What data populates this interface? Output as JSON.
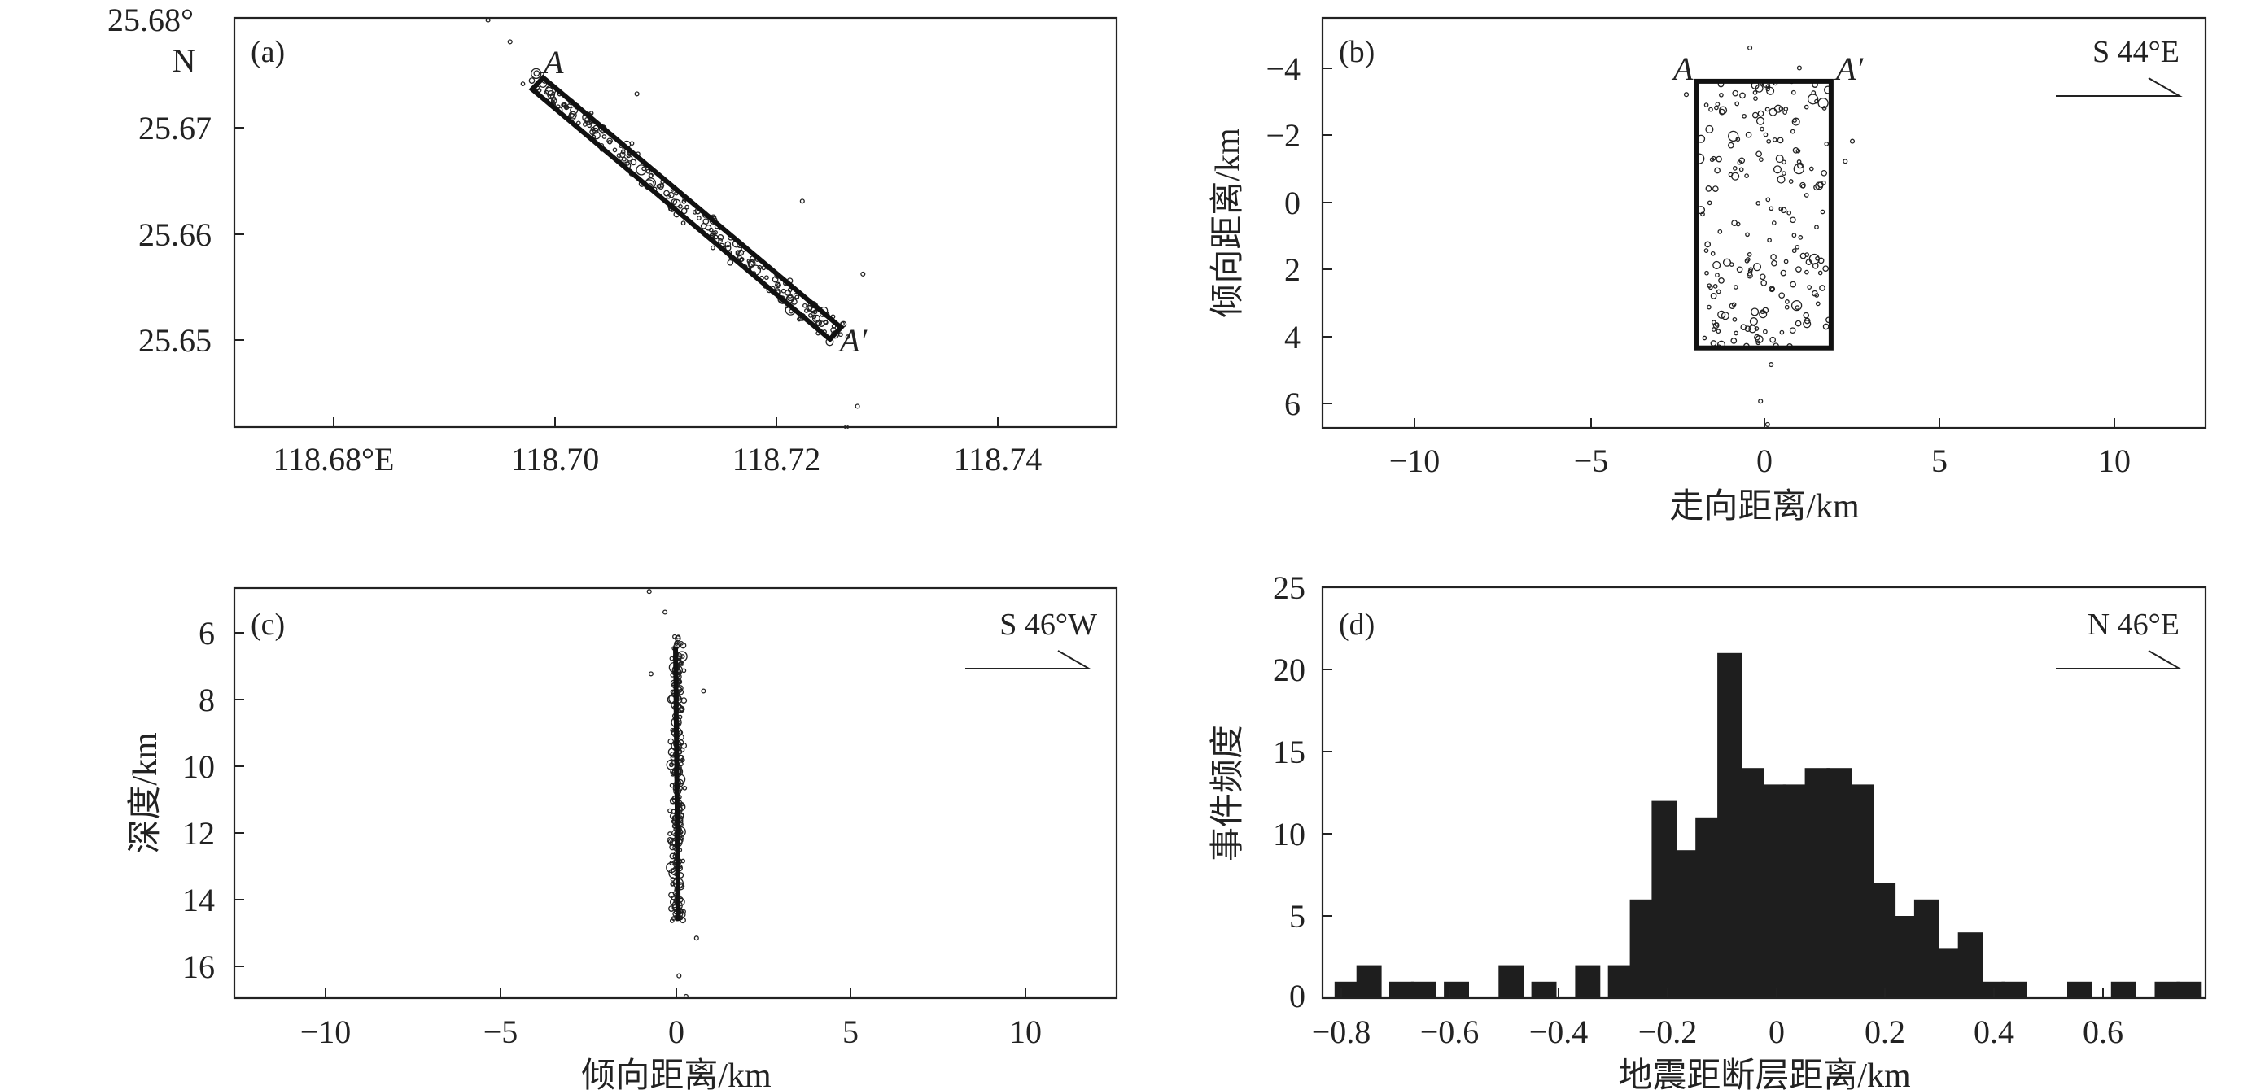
{
  "chart_data": [
    {
      "type": "scatter",
      "panel_label": "(a)",
      "x_ticks": [
        "118.68°E",
        "118.70",
        "118.72",
        "118.74"
      ],
      "x_tick_values": [
        118.68,
        118.7,
        118.72,
        118.74
      ],
      "y_ticks": [
        "25.68°",
        "25.67",
        "25.66",
        "25.65"
      ],
      "y_tick_values": [
        25.68,
        25.67,
        25.66,
        25.65
      ],
      "y_unit": "N",
      "xlim": [
        118.671,
        118.751
      ],
      "ylim": [
        25.6415,
        25.6808
      ],
      "grid": false,
      "profile_box": {
        "start_label": "A",
        "end_label": "A′",
        "start": [
          118.6985,
          25.6745
        ],
        "end": [
          118.7255,
          25.6505
        ],
        "half_width_deg": 0.00075
      },
      "note": "approximate earthquake epicenters"
    },
    {
      "type": "scatter",
      "panel_label": "(b)",
      "xlabel": "走向距离/km",
      "ylabel": "倾向距离/km",
      "x_ticks": [
        "−10",
        "−5",
        "0",
        "5",
        "10"
      ],
      "x_tick_values": [
        -10,
        -5,
        0,
        5,
        10
      ],
      "y_ticks": [
        "−4",
        "−2",
        "0",
        "2",
        "4",
        "6"
      ],
      "y_tick_values": [
        -4,
        -2,
        0,
        2,
        4,
        6
      ],
      "xlim": [
        -12.5,
        12.5
      ],
      "ylim": [
        -5.5,
        6.8
      ],
      "y_inverted": true,
      "grid": false,
      "direction_label": "S 44°E",
      "profile_box": {
        "start_label": "A",
        "end_label": "A′",
        "x": [
          -1.9,
          1.9
        ],
        "y": [
          -3.6,
          4.4
        ]
      }
    },
    {
      "type": "scatter",
      "panel_label": "(c)",
      "xlabel": "倾向距离/km",
      "ylabel": "深度/km",
      "x_ticks": [
        "−10",
        "−5",
        "0",
        "5",
        "10"
      ],
      "x_tick_values": [
        -10,
        -5,
        0,
        5,
        10
      ],
      "y_ticks": [
        "6",
        "8",
        "10",
        "12",
        "14",
        "16"
      ],
      "y_tick_values": [
        6,
        8,
        10,
        12,
        14,
        16
      ],
      "xlim": [
        -12.6,
        12.6
      ],
      "ylim": [
        4.9,
        16.85
      ],
      "y_inverted": true,
      "grid": false,
      "direction_label": "S 46°W",
      "fault_line": {
        "x": [
          0.0,
          0.08
        ],
        "depth": [
          6.6,
          14.6
        ]
      }
    },
    {
      "type": "bar",
      "panel_label": "(d)",
      "xlabel": "地震距断层距离/km",
      "ylabel": "事件频度",
      "x_ticks": [
        "−0.8",
        "−0.6",
        "−0.4",
        "−0.2",
        "0",
        "0.2",
        "0.4",
        "0.6"
      ],
      "x_tick_values": [
        -0.8,
        -0.6,
        -0.4,
        -0.2,
        0,
        0.2,
        0.4,
        0.6
      ],
      "y_ticks": [
        "0",
        "5",
        "10",
        "15",
        "20",
        "25"
      ],
      "y_tick_values": [
        0,
        5,
        10,
        15,
        20,
        25
      ],
      "xlim": [
        -0.835,
        0.78
      ],
      "ylim": [
        0,
        25
      ],
      "grid": false,
      "direction_label": "N 46°E",
      "bin_width": 0.05,
      "bin_centers": [
        -0.79,
        -0.75,
        -0.69,
        -0.65,
        -0.59,
        -0.49,
        -0.43,
        -0.35,
        -0.29,
        -0.25,
        -0.21,
        -0.17,
        -0.13,
        -0.09,
        -0.05,
        -0.01,
        0.03,
        0.07,
        0.11,
        0.15,
        0.19,
        0.23,
        0.27,
        0.31,
        0.35,
        0.39,
        0.43,
        0.55,
        0.63,
        0.71,
        0.75
      ],
      "values": [
        1,
        2,
        1,
        1,
        1,
        2,
        1,
        2,
        2,
        6,
        12,
        9,
        11,
        21,
        14,
        13,
        13,
        14,
        14,
        13,
        7,
        5,
        6,
        3,
        4,
        1,
        1,
        1,
        1,
        1,
        1
      ]
    }
  ]
}
